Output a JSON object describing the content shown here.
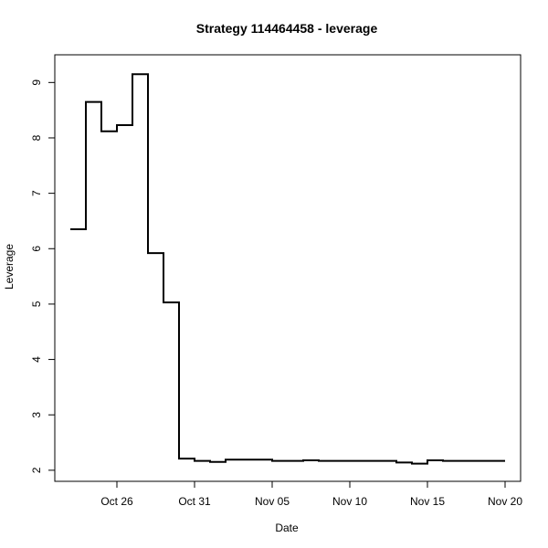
{
  "chart_data": {
    "type": "line",
    "step": true,
    "title": "Strategy 114464458 - leverage",
    "xlabel": "Date",
    "ylabel": "Leverage",
    "x_ticks": [
      {
        "date": "2015-10-26",
        "label": "Oct 26"
      },
      {
        "date": "2015-10-31",
        "label": "Oct 31"
      },
      {
        "date": "2015-11-05",
        "label": "Nov 05"
      },
      {
        "date": "2015-11-10",
        "label": "Nov 10"
      },
      {
        "date": "2015-11-15",
        "label": "Nov 15"
      },
      {
        "date": "2015-11-20",
        "label": "Nov 20"
      }
    ],
    "y_ticks": [
      2,
      3,
      4,
      5,
      6,
      7,
      8,
      9
    ],
    "xlim": [
      "2015-10-22",
      "2015-11-21"
    ],
    "ylim": [
      1.8,
      9.5
    ],
    "series": [
      {
        "points": [
          {
            "x": "2015-10-23",
            "y": 6.35
          },
          {
            "x": "2015-10-24",
            "y": 8.65
          },
          {
            "x": "2015-10-25",
            "y": 8.12
          },
          {
            "x": "2015-10-26",
            "y": 8.23
          },
          {
            "x": "2015-10-27",
            "y": 9.15
          },
          {
            "x": "2015-10-28",
            "y": 5.92
          },
          {
            "x": "2015-10-29",
            "y": 5.03
          },
          {
            "x": "2015-10-30",
            "y": 2.21
          },
          {
            "x": "2015-10-31",
            "y": 2.17
          },
          {
            "x": "2015-11-01",
            "y": 2.15
          },
          {
            "x": "2015-11-02",
            "y": 2.19
          },
          {
            "x": "2015-11-03",
            "y": 2.19
          },
          {
            "x": "2015-11-04",
            "y": 2.19
          },
          {
            "x": "2015-11-05",
            "y": 2.17
          },
          {
            "x": "2015-11-06",
            "y": 2.17
          },
          {
            "x": "2015-11-07",
            "y": 2.18
          },
          {
            "x": "2015-11-08",
            "y": 2.17
          },
          {
            "x": "2015-11-09",
            "y": 2.17
          },
          {
            "x": "2015-11-10",
            "y": 2.17
          },
          {
            "x": "2015-11-11",
            "y": 2.17
          },
          {
            "x": "2015-11-12",
            "y": 2.17
          },
          {
            "x": "2015-11-13",
            "y": 2.14
          },
          {
            "x": "2015-11-14",
            "y": 2.12
          },
          {
            "x": "2015-11-15",
            "y": 2.18
          },
          {
            "x": "2015-11-16",
            "y": 2.17
          },
          {
            "x": "2015-11-17",
            "y": 2.17
          },
          {
            "x": "2015-11-18",
            "y": 2.17
          },
          {
            "x": "2015-11-19",
            "y": 2.17
          }
        ],
        "color": "#000000"
      }
    ],
    "grid": false,
    "legend": "none"
  }
}
